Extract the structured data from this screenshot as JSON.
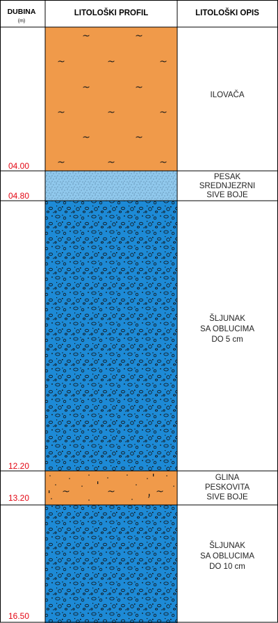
{
  "header": {
    "depth_title": "DUBINA",
    "depth_unit": "(m)",
    "profile_title": "LITOLOŠKI PROFIL",
    "description_title": "LITOLOŠKI OPIS"
  },
  "layers": [
    {
      "depth": "04.00",
      "pattern": "clay",
      "description": [
        "ILOVAČA"
      ]
    },
    {
      "depth": "04.80",
      "pattern": "sand",
      "description": [
        "PESAK",
        "SREDNJEZRNI",
        "SIVE BOJE"
      ]
    },
    {
      "depth": "12.20",
      "pattern": "gravel",
      "description": [
        "ŠLJUNAK",
        "SA OBLUCIMA",
        "DO 5 cm"
      ]
    },
    {
      "depth": "13.20",
      "pattern": "sandy-clay",
      "description": [
        "GLINA",
        "PESKOVITA",
        "SIVE BOJE"
      ]
    },
    {
      "depth": "16.50",
      "pattern": "gravel",
      "description": [
        "ŠLJUNAK",
        "SA OBLUCIMA",
        "DO 10 cm"
      ]
    }
  ],
  "colors": {
    "clay": "#f09a4a",
    "sand": "#90c8ec",
    "gravel": "#1d8ad6",
    "depth_text": "#e30613",
    "lines": "#000000"
  }
}
